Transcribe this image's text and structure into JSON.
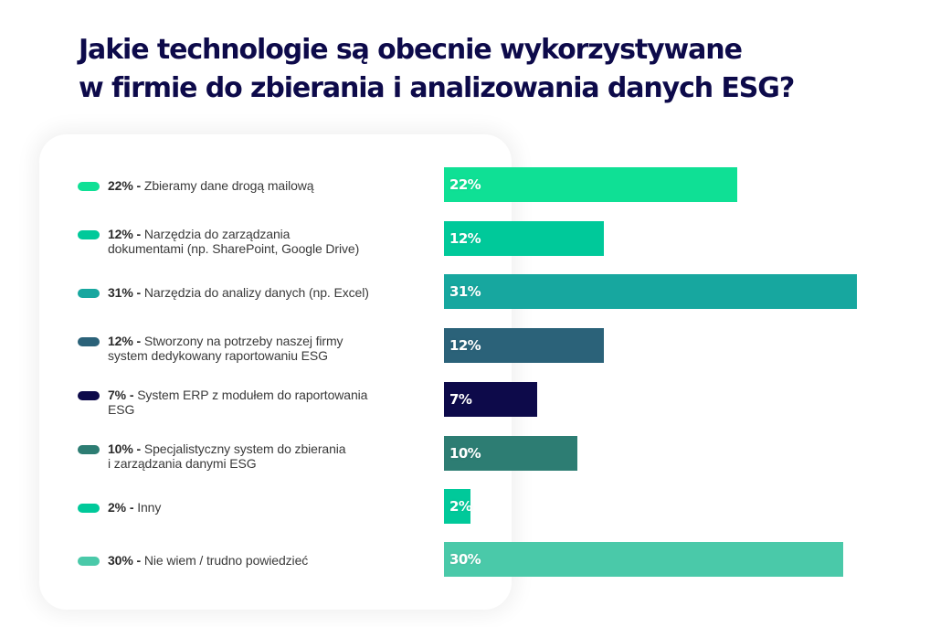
{
  "title": {
    "line1": "Jakie technologie są obecnie wykorzystywane",
    "line2": "w firmie do zbierania i analizowania danych ESG?"
  },
  "chart_data": {
    "type": "bar",
    "orientation": "horizontal",
    "title": "Jakie technologie są obecnie wykorzystywane w firmie do zbierania i analizowania danych ESG?",
    "xlabel": "",
    "ylabel": "",
    "unit": "%",
    "grid": false,
    "legend_placement": "left",
    "categories": [
      "Zbieramy dane drogą mailową",
      "Narzędzia do zarządzania dokumentami (np. SharePoint, Google Drive)",
      "Narzędzia do analizy danych (np. Excel)",
      "Stworzony na potrzeby naszej firmy system dedykowany raportowaniu ESG",
      "System ERP z modułem do raportowania ESG",
      "Specjalistyczny system do zbierania i zarządzania danymi ESG",
      "Inny",
      "Nie wiem / trudno powiedzieć"
    ],
    "values": [
      22,
      12,
      31,
      12,
      7,
      10,
      2,
      30
    ],
    "value_labels": [
      "22%",
      "12%",
      "31%",
      "12%",
      "7%",
      "10%",
      "2%",
      "30%"
    ],
    "colors": [
      "#0fe095",
      "#00c99a",
      "#17a79f",
      "#2b6279",
      "#0d0a4a",
      "#2d7d73",
      "#00c99a",
      "#4ac9a9"
    ],
    "xlim": [
      0,
      31
    ]
  },
  "legend": [
    {
      "pct": "22% -",
      "lines": [
        "Zbieramy dane drogą mailową"
      ]
    },
    {
      "pct": "12% -",
      "lines": [
        "Narzędzia do zarządzania",
        "dokumentami (np. SharePoint, Google Drive)"
      ]
    },
    {
      "pct": "31% -",
      "lines": [
        "Narzędzia do analizy danych (np. Excel)"
      ]
    },
    {
      "pct": "12% -",
      "lines": [
        "Stworzony na potrzeby naszej firmy",
        "system dedykowany raportowaniu ESG"
      ]
    },
    {
      "pct": "7% -",
      "lines": [
        "System ERP z modułem do raportowania",
        "ESG"
      ]
    },
    {
      "pct": "10% -",
      "lines": [
        "Specjalistyczny system do zbierania",
        "i zarządzania danymi ESG"
      ]
    },
    {
      "pct": "2% -",
      "lines": [
        "Inny"
      ]
    },
    {
      "pct": "30% -",
      "lines": [
        "Nie wiem / trudno powiedzieć"
      ]
    }
  ]
}
